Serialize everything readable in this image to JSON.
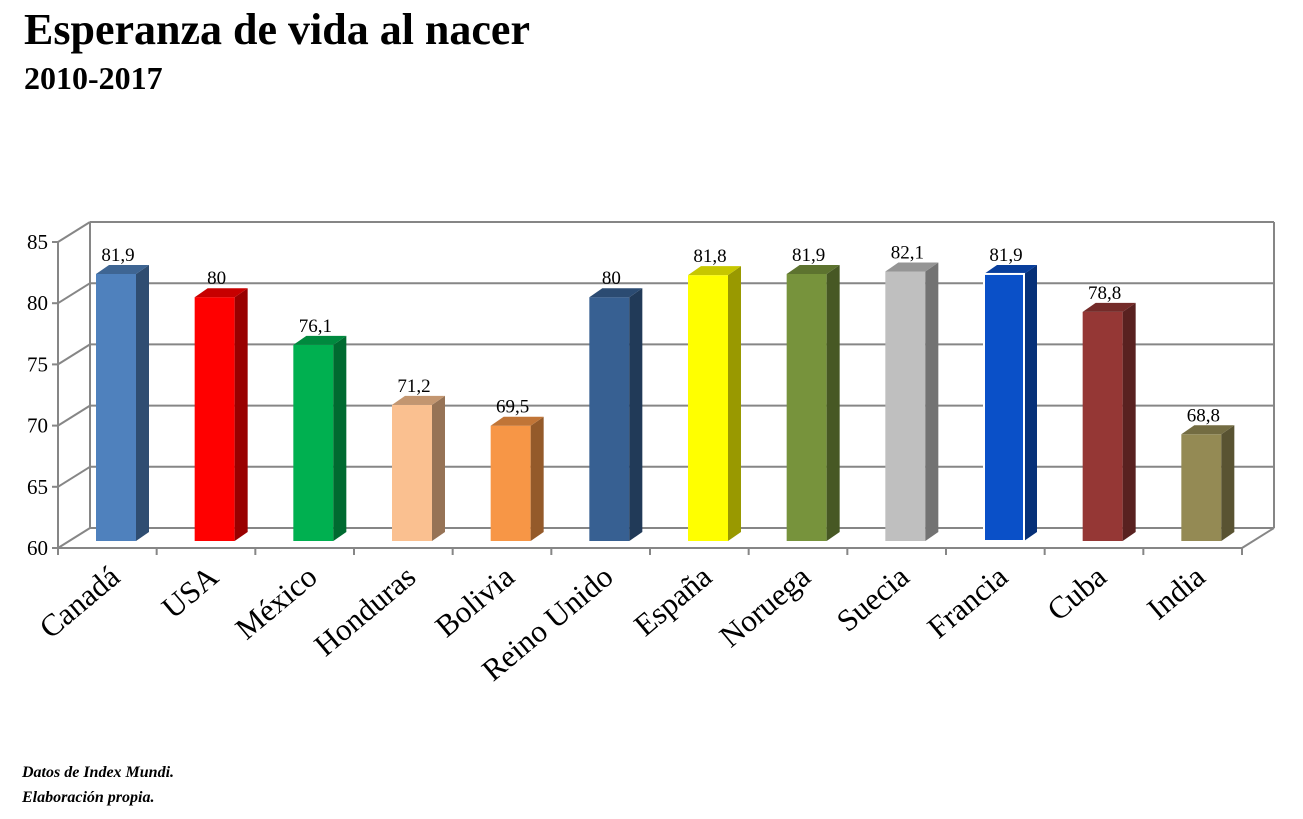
{
  "title": "Esperanza de vida al nacer",
  "subtitle": "2010-2017",
  "footer": {
    "line1": "Datos de Index Mundi.",
    "line2": "Elaboración propia."
  },
  "chart_data": {
    "type": "bar",
    "title": "Esperanza de vida al nacer",
    "subtitle": "2010-2017",
    "xlabel": "",
    "ylabel": "",
    "ylim": [
      60,
      85
    ],
    "yticks": [
      60,
      65,
      70,
      75,
      80,
      85
    ],
    "grid": true,
    "legend": "none",
    "categories": [
      "Canadá",
      "USA",
      "México",
      "Honduras",
      "Bolivia",
      "Reino Unido",
      "España",
      "Noruega",
      "Suecia",
      "Francia",
      "Cuba",
      "India"
    ],
    "values": [
      81.9,
      80,
      76.1,
      71.2,
      69.5,
      80,
      81.8,
      81.9,
      82.1,
      81.9,
      78.8,
      68.8
    ],
    "data_labels": [
      "81,9",
      "80",
      "76,1",
      "71,2",
      "69,5",
      "80",
      "81,8",
      "81,9",
      "82,1",
      "81,9",
      "78,8",
      "68,8"
    ],
    "colors": [
      "#4f81bd",
      "#ff0000",
      "#00b050",
      "#fac090",
      "#f79646",
      "#376092",
      "#ffff00",
      "#77933c",
      "#bfbfbf",
      "#0a50c8",
      "#953735",
      "#948a54"
    ]
  }
}
